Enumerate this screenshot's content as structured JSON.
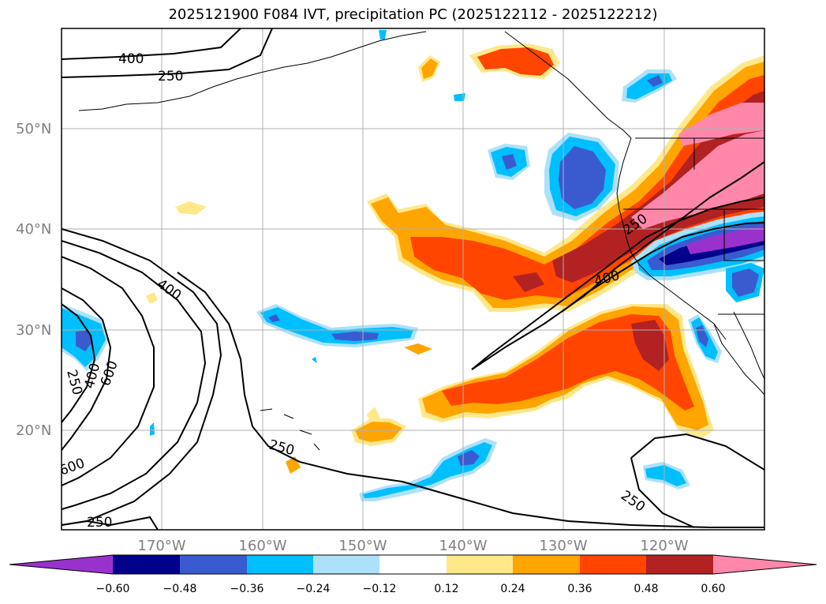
{
  "title": "2025121900 F084 IVT, precipitation PC (2025122112 - 2025122212)",
  "latitude_labels": [
    "50°N",
    "40°N",
    "30°N",
    "20°N"
  ],
  "longitude_labels": [
    "170°W",
    "160°W",
    "150°W",
    "140°W",
    "130°W",
    "120°W"
  ],
  "ivt_contour_labels": [
    "400",
    "250",
    "400",
    "250",
    "600",
    "400",
    "250",
    "250",
    "400",
    "250",
    "250",
    "600"
  ],
  "colorbar": {
    "ticks": [
      "−0.60",
      "−0.48",
      "−0.36",
      "−0.24",
      "−0.12",
      "0.12",
      "0.24",
      "0.36",
      "0.48",
      "0.60"
    ],
    "colors": [
      "#9932CC",
      "#00008B",
      "#3A5BD0",
      "#00BFFF",
      "#ADE1FA",
      "#FFFFFF",
      "#FFE88A",
      "#FFA500",
      "#FF4500",
      "#B22222",
      "#FF88AA"
    ]
  },
  "style": {
    "ocean": "#ffffff",
    "gridline": "#b0b0b0",
    "coastline": "#000000",
    "contour": "#000000"
  }
}
